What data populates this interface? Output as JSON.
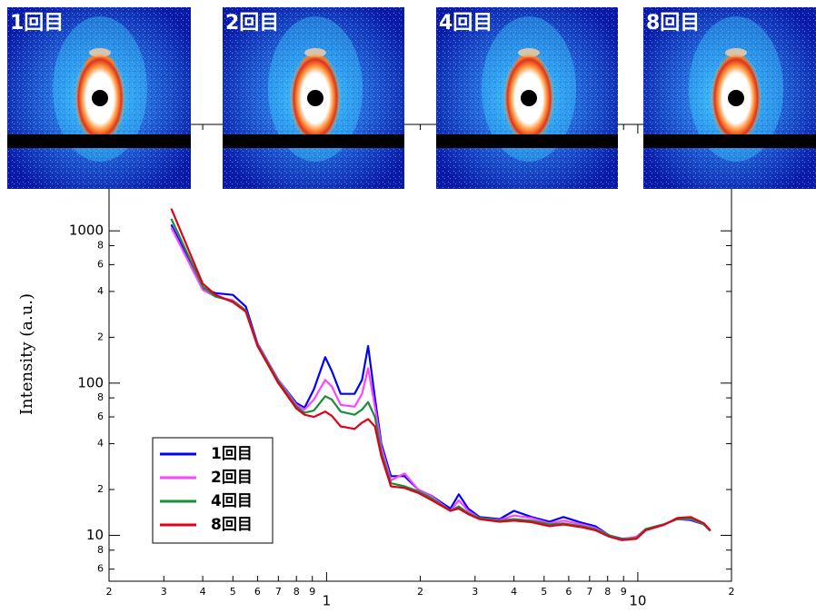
{
  "chart_data": {
    "type": "line",
    "y_label": "Intensity (a.u.)",
    "xscale": "log",
    "yscale": "log",
    "xlim": [
      0.2,
      20
    ],
    "ylim": [
      5,
      5000
    ],
    "xticks": [
      {
        "value": 0.2,
        "label": "2"
      },
      {
        "value": 0.3,
        "label": "3"
      },
      {
        "value": 0.4,
        "label": "4"
      },
      {
        "value": 0.5,
        "label": "5"
      },
      {
        "value": 0.6,
        "label": "6"
      },
      {
        "value": 0.7,
        "label": "7"
      },
      {
        "value": 0.8,
        "label": "8"
      },
      {
        "value": 0.9,
        "label": "9"
      },
      1,
      2,
      3,
      4,
      5,
      6,
      7,
      8,
      9,
      10,
      {
        "value": 20,
        "label": "2"
      }
    ],
    "yticks": [
      6,
      8,
      10,
      {
        "value": 20,
        "label": "2"
      },
      {
        "value": 40,
        "label": "4"
      },
      {
        "value": 60,
        "label": "6"
      },
      {
        "value": 80,
        "label": "8"
      },
      100,
      {
        "value": 200,
        "label": "2"
      },
      {
        "value": 400,
        "label": "4"
      },
      {
        "value": 600,
        "label": "6"
      },
      {
        "value": 800,
        "label": "8"
      },
      1000
    ],
    "legend_position": "lower left",
    "x": [
      0.317,
      0.4,
      0.44,
      0.5,
      0.55,
      0.6,
      0.7,
      0.8,
      0.85,
      0.91,
      0.99,
      1.04,
      1.11,
      1.23,
      1.3,
      1.36,
      1.43,
      1.5,
      1.61,
      1.78,
      1.97,
      2.18,
      2.5,
      2.66,
      2.85,
      3.1,
      3.6,
      4.0,
      4.56,
      5.2,
      5.77,
      6.6,
      7.3,
      8.1,
      8.9,
      9.9,
      10.6,
      12.1,
      13.4,
      14.8,
      16.3,
      17.1
    ],
    "series": [
      {
        "name": "1回目",
        "color": "#0000ff",
        "values": [
          1100,
          420,
          390,
          380,
          318,
          182,
          105,
          74,
          69,
          91,
          148,
          120,
          85,
          85,
          105,
          175,
          80,
          40,
          24.5,
          24.5,
          20,
          18.1,
          15,
          18.6,
          15,
          13.2,
          12.8,
          14.5,
          13.2,
          12.3,
          13.2,
          12.1,
          11.5,
          10,
          9.5,
          9.7,
          11,
          11.8,
          12.8,
          12.6,
          11.8,
          10.7
        ]
      },
      {
        "name": "2回目",
        "color": "#ff44ff",
        "values": [
          1050,
          410,
          370,
          350,
          300,
          180,
          105,
          72,
          67,
          78,
          105,
          95,
          72,
          70,
          85,
          125,
          70,
          38,
          23,
          25.5,
          20,
          18,
          14.5,
          17,
          14.5,
          13,
          12.6,
          13.5,
          13,
          12,
          12.5,
          11.8,
          11.2,
          10,
          9.4,
          9.8,
          11,
          11.8,
          12.8,
          12.8,
          11.8,
          10.7
        ]
      },
      {
        "name": "4回目",
        "color": "#1a8c3a",
        "values": [
          1200,
          430,
          370,
          345,
          300,
          178,
          103,
          70,
          64,
          66,
          82,
          78,
          65,
          62,
          67,
          75,
          60,
          35,
          22,
          21,
          19.5,
          17.5,
          14.5,
          15.5,
          14,
          13,
          12.5,
          12.8,
          12.5,
          11.8,
          12,
          11.5,
          11,
          10,
          9.4,
          9.6,
          11,
          11.8,
          12.8,
          12.9,
          11.8,
          10.7
        ]
      },
      {
        "name": "8回目",
        "color": "#e0001a",
        "values": [
          1400,
          450,
          380,
          340,
          295,
          175,
          100,
          68,
          62,
          60,
          65,
          61,
          52,
          50,
          55,
          58,
          52,
          33,
          21,
          20.5,
          19,
          17,
          14.5,
          15,
          13.8,
          12.8,
          12.3,
          12.5,
          12.2,
          11.5,
          11.8,
          11.3,
          10.8,
          9.8,
          9.3,
          9.5,
          10.8,
          11.7,
          13,
          13.2,
          12,
          10.8
        ]
      }
    ]
  },
  "panels": [
    "1回目",
    "2回目",
    "4回目",
    "8回目"
  ]
}
